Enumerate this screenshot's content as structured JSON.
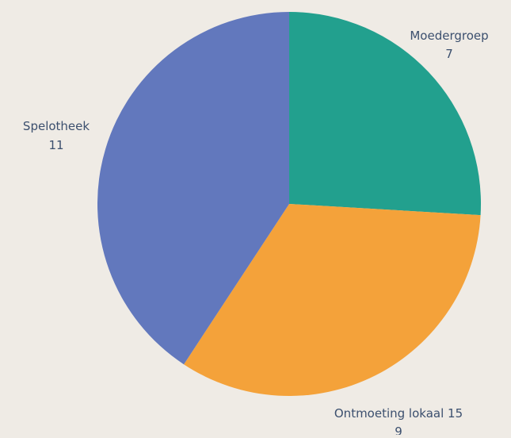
{
  "chart_data": {
    "type": "pie",
    "title": "",
    "start_angle_deg": 0,
    "direction": "clockwise",
    "slices": [
      {
        "label": "Moedergroep",
        "value": 7,
        "color": "#22a08e"
      },
      {
        "label": "Ontmoeting lokaal 15",
        "value": 9,
        "color": "#f4a23a"
      },
      {
        "label": "Spelotheek",
        "value": 11,
        "color": "#6278bd"
      }
    ],
    "label_color": "#3b4f6e"
  }
}
